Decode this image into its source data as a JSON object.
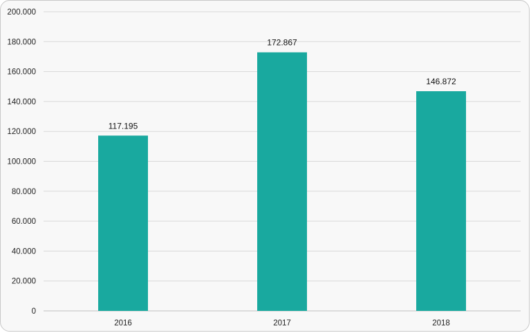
{
  "chart_data": {
    "type": "bar",
    "title": "",
    "xlabel": "",
    "ylabel": "",
    "categories": [
      "2016",
      "2017",
      "2018"
    ],
    "values": [
      117195,
      172867,
      146872
    ],
    "value_labels": [
      "117.195",
      "172.867",
      "146.872"
    ],
    "ylim": [
      0,
      200000
    ],
    "y_ticks": [
      0,
      20000,
      40000,
      60000,
      80000,
      100000,
      120000,
      140000,
      160000,
      180000,
      200000
    ],
    "y_tick_labels": [
      "0",
      "20.000",
      "40.000",
      "60.000",
      "80.000",
      "100.000",
      "120.000",
      "140.000",
      "160.000",
      "180.000",
      "200.000"
    ],
    "grid": true,
    "legend": "none",
    "colors": {
      "bar": "#19a99f",
      "grid": "#d9d9d9",
      "axis": "#bfbfbf"
    }
  }
}
